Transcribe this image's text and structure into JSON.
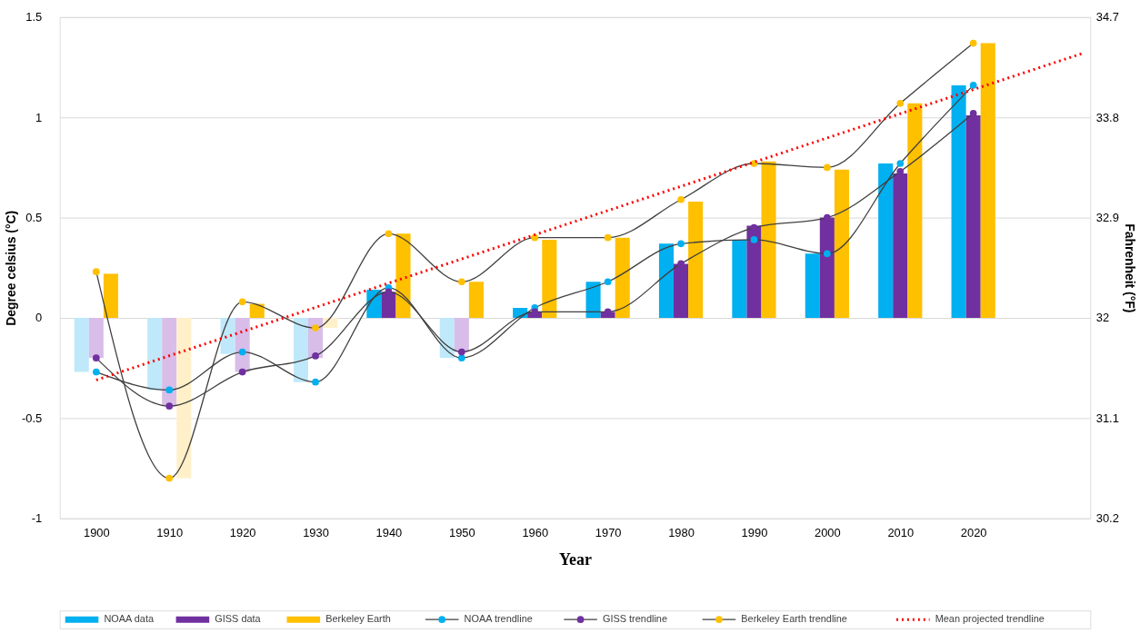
{
  "chart_data": {
    "type": "bar",
    "xlabel": "Year",
    "ylabel": "Degree celsius (°C)",
    "y2label": "Fahrenheit (°F)",
    "x": [
      1900,
      1910,
      1920,
      1930,
      1940,
      1950,
      1960,
      1970,
      1980,
      1990,
      2000,
      2010,
      2020
    ],
    "xlim": [
      1895,
      2036
    ],
    "xticks": [
      1900,
      1910,
      1920,
      1930,
      1940,
      1950,
      1960,
      1970,
      1980,
      1990,
      2000,
      2010,
      2020
    ],
    "ylim": [
      -1,
      1.5
    ],
    "yticks": [
      -1,
      -0.5,
      0,
      0.5,
      1,
      1.5
    ],
    "y2lim": [
      30.2,
      34.7
    ],
    "y2ticks": [
      30.2,
      31.1,
      32,
      32.9,
      33.8,
      34.7
    ],
    "grid": "y",
    "legend": "bottom",
    "series": [
      {
        "name": "NOAA data",
        "color": "#00b0f0",
        "colors": [
          "#bfe9fa",
          "#bfe9fa",
          "#bfe9fa",
          "#bfe9fa",
          "#00b0f0",
          "#bfe9fa",
          "#00b0f0",
          "#00b0f0",
          "#00b0f0",
          "#00b0f0",
          "#00b0f0",
          "#00b0f0",
          "#00b0f0"
        ],
        "values": [
          -0.27,
          -0.36,
          -0.18,
          -0.32,
          0.14,
          -0.2,
          0.05,
          0.18,
          0.37,
          0.39,
          0.32,
          0.77,
          1.16
        ]
      },
      {
        "name": "GISS data",
        "color": "#7030a0",
        "colors": [
          "#d8bde9",
          "#d8bde9",
          "#d8bde9",
          "#d8bde9",
          "#7030a0",
          "#d8bde9",
          "#7030a0",
          "#7030a0",
          "#7030a0",
          "#7030a0",
          "#7030a0",
          "#7030a0",
          "#7030a0"
        ],
        "values": [
          -0.2,
          -0.44,
          -0.27,
          -0.2,
          0.13,
          -0.17,
          0.03,
          0.03,
          0.27,
          0.46,
          0.5,
          0.72,
          1.01
        ]
      },
      {
        "name": "Berkeley Earth",
        "color": "#ffc000",
        "colors": [
          "#ffc000",
          "#fff0c9",
          "#ffc000",
          "#fff0c9",
          "#ffc000",
          "#ffc000",
          "#ffc000",
          "#ffc000",
          "#ffc000",
          "#ffc000",
          "#ffc000",
          "#ffc000",
          "#ffc000"
        ],
        "values": [
          0.22,
          -0.8,
          0.07,
          -0.05,
          0.42,
          0.18,
          0.39,
          0.4,
          0.58,
          0.78,
          0.74,
          1.07,
          1.37
        ]
      },
      {
        "name": "NOAA trendline",
        "type": "line",
        "marker": "circle",
        "color": "#00b0f0",
        "values": [
          -0.27,
          -0.36,
          -0.17,
          -0.32,
          0.15,
          -0.2,
          0.05,
          0.18,
          0.37,
          0.39,
          0.32,
          0.77,
          1.16
        ]
      },
      {
        "name": "GISS trendline",
        "type": "line",
        "marker": "circle",
        "color": "#7030a0",
        "values": [
          -0.2,
          -0.44,
          -0.27,
          -0.19,
          0.13,
          -0.17,
          0.03,
          0.03,
          0.27,
          0.45,
          0.5,
          0.73,
          1.02
        ]
      },
      {
        "name": "Berkeley Earth trendline",
        "type": "line",
        "marker": "circle",
        "color": "#ffc000",
        "values": [
          0.23,
          -0.8,
          0.08,
          -0.05,
          0.42,
          0.18,
          0.4,
          0.4,
          0.59,
          0.77,
          0.75,
          1.07,
          1.37
        ]
      },
      {
        "name": "Mean projected trendline",
        "type": "line",
        "marker": "none",
        "line_style": "dotted",
        "color": "#ff0000",
        "x": [
          1900,
          2035
        ],
        "values": [
          -0.31,
          1.32
        ]
      }
    ]
  }
}
